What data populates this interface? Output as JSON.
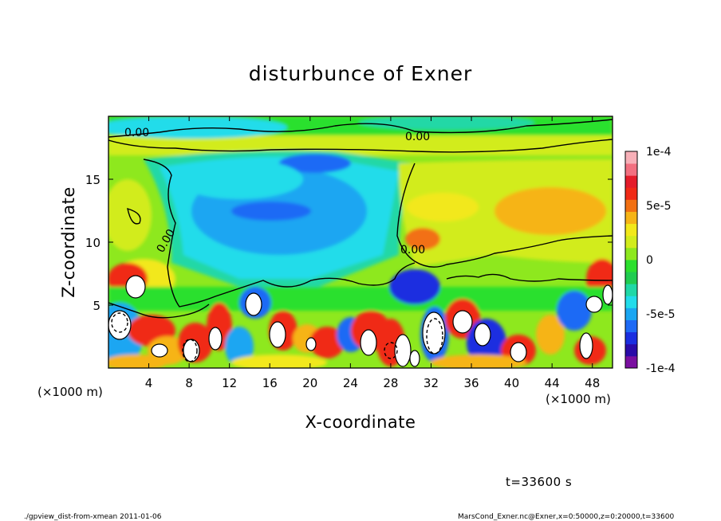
{
  "chart_data": {
    "type": "heatmap",
    "title": "disturbunce of Exner",
    "xlabel": "X-coordinate",
    "ylabel": "Z-coordinate",
    "x_unit": "(×1000 m)",
    "x_unit_right": "(×1000 m)",
    "xlim": [
      0,
      50
    ],
    "ylim": [
      0,
      20
    ],
    "x_ticks": [
      "4",
      "8",
      "12",
      "16",
      "20",
      "24",
      "28",
      "32",
      "36",
      "40",
      "44",
      "48"
    ],
    "x_tick_values": [
      4,
      8,
      12,
      16,
      20,
      24,
      28,
      32,
      36,
      40,
      44,
      48
    ],
    "y_ticks": [
      "5",
      "10",
      "15"
    ],
    "y_tick_values": [
      5,
      10,
      15
    ],
    "colorbar": {
      "min": -0.0001,
      "max": 0.0001,
      "tick_labels": [
        "1e-4",
        "5e-5",
        "0",
        "-5e-5",
        "-1e-4"
      ],
      "tick_values": [
        0.0001,
        5e-05,
        0,
        -5e-05,
        -0.0001
      ],
      "colors": [
        "#7a0fa0",
        "#2a0ba8",
        "#1a2ee0",
        "#1e6af5",
        "#1aa6f2",
        "#22dcea",
        "#20d8a6",
        "#20cc50",
        "#2ce02e",
        "#8ee81e",
        "#d2ec1c",
        "#f2e81a",
        "#f6b416",
        "#f27012",
        "#f02a16",
        "#e41c2a",
        "#f27080",
        "#f7b0b8"
      ]
    },
    "contour_labels": [
      "0.00",
      "0.00",
      "0.00",
      "0.00"
    ],
    "time_label": "t=33600 s"
  },
  "footer": {
    "left": "./gpview_dist-from-xmean  2011-01-06",
    "right": "MarsCond_Exner.nc@Exner,x=0:50000,z=0:20000,t=33600"
  }
}
